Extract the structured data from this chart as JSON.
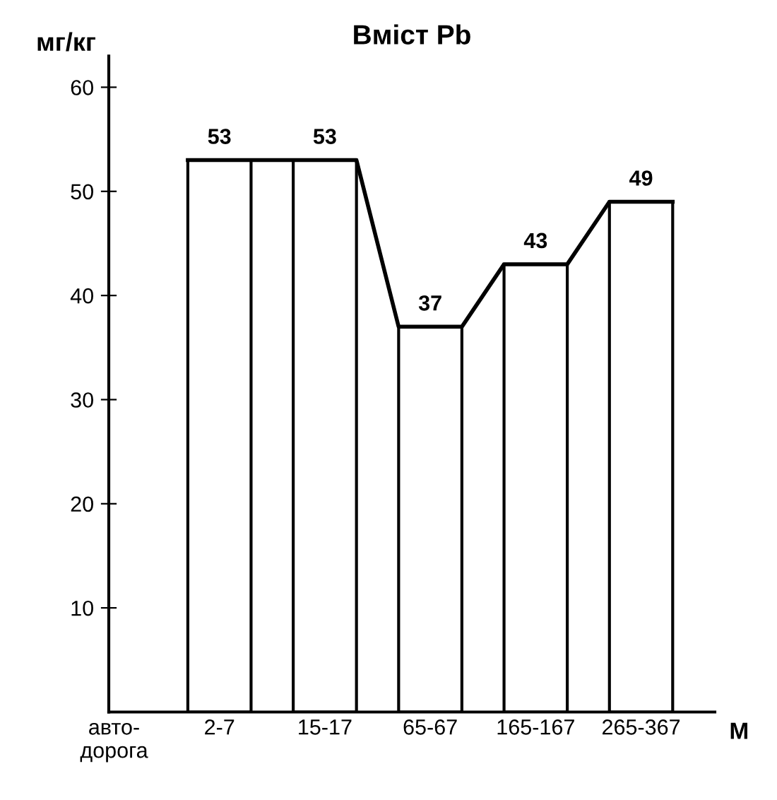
{
  "chart_data": {
    "type": "bar",
    "title": "Вміст Pb",
    "xlabel": "М",
    "ylabel": "мг/кг",
    "categories": [
      "авто-\nдорога",
      "2-7",
      "15-17",
      "65-67",
      "165-167",
      "265-367"
    ],
    "series": [
      {
        "color": "#ffffff",
        "values": [
          null,
          53,
          53,
          37,
          43,
          49
        ]
      }
    ],
    "data_labels": true,
    "ylim": [
      0,
      63
    ],
    "yticks": [
      10,
      20,
      30,
      40,
      50,
      60
    ],
    "grid": false,
    "legend": false
  }
}
